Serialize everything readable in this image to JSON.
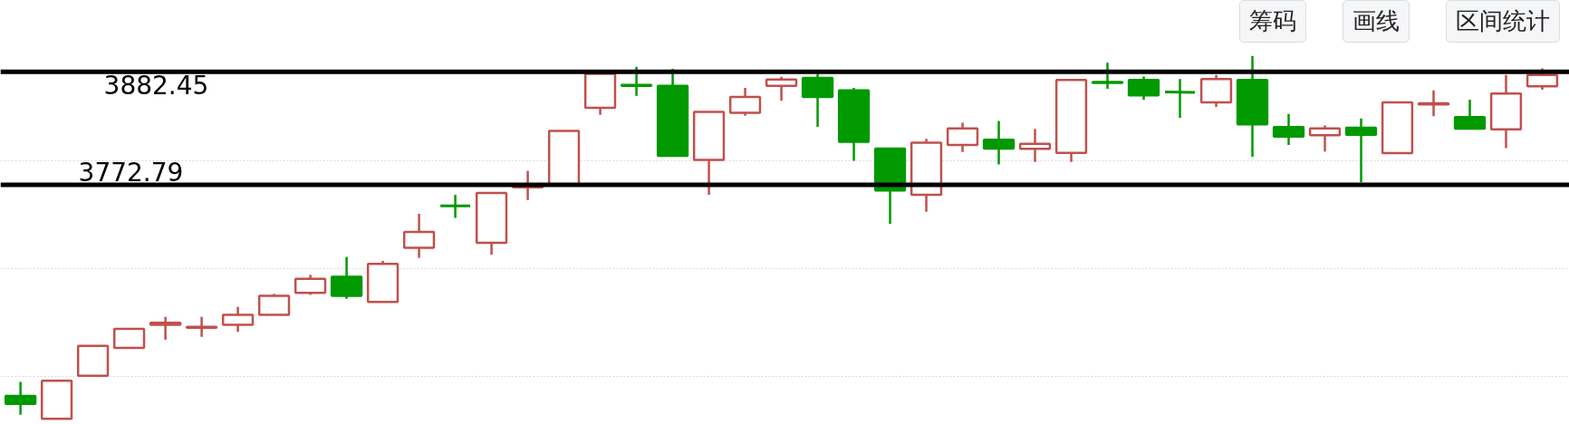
{
  "chart_data": {
    "type": "candlestick",
    "categories": [
      null,
      null,
      null,
      null,
      null,
      null,
      null,
      null,
      null,
      null,
      null,
      null,
      null,
      null,
      null,
      null,
      null,
      null,
      null,
      null,
      null,
      null,
      null,
      null,
      null,
      null,
      null,
      null,
      null,
      null,
      null,
      null,
      null,
      null,
      null,
      null,
      null,
      null,
      null,
      null,
      null,
      null,
      null
    ],
    "ohlc": [
      [
        3568.0,
        3581.6,
        3549.6,
        3560.3
      ],
      [
        3545.7,
        3582.6,
        3545.7,
        3582.6
      ],
      [
        3587.4,
        3616.5,
        3586.5,
        3616.5
      ],
      [
        3614.6,
        3633.0,
        3613.6,
        3633.0
      ],
      [
        3636.9,
        3644.7,
        3622.4,
        3638.9
      ],
      [
        3634.0,
        3644.7,
        3625.3,
        3635.0
      ],
      [
        3636.9,
        3654.4,
        3630.1,
        3646.6
      ],
      [
        3646.6,
        3667.0,
        3646.6,
        3665.1
      ],
      [
        3668.0,
        3685.4,
        3666.0,
        3681.6
      ],
      [
        3683.5,
        3702.9,
        3662.2,
        3665.1
      ],
      [
        3659.2,
        3699.0,
        3659.2,
        3696.1
      ],
      [
        3711.6,
        3744.6,
        3701.9,
        3727.2
      ],
      [
        3752.4,
        3763.1,
        3740.8,
        3752.4
      ],
      [
        3716.5,
        3765.0,
        3704.9,
        3765.0
      ],
      [
        3770.4,
        3786.4,
        3758.2,
        3771.3
      ],
      [
        3772.8,
        3825.2,
        3772.8,
        3825.2
      ],
      [
        3847.5,
        3882.5,
        3840.7,
        3880.5
      ],
      [
        3869.8,
        3887.3,
        3859.2,
        3868.9
      ],
      [
        3868.9,
        3885.4,
        3800.9,
        3800.9
      ],
      [
        3797.0,
        3843.6,
        3763.1,
        3843.6
      ],
      [
        3842.7,
        3866.9,
        3839.8,
        3858.2
      ],
      [
        3868.9,
        3877.6,
        3854.3,
        3875.1
      ],
      [
        3876.6,
        3880.5,
        3829.1,
        3858.2
      ],
      [
        3864.5,
        3866.9,
        3796.1,
        3814.5
      ],
      [
        3808.1,
        3808.7,
        3735.1,
        3767.4
      ],
      [
        3763.1,
        3817.4,
        3746.6,
        3813.6
      ],
      [
        3811.6,
        3833.0,
        3804.8,
        3827.6
      ],
      [
        3816.5,
        3834.9,
        3792.5,
        3808.1
      ],
      [
        3807.7,
        3827.1,
        3795.1,
        3812.6
      ],
      [
        3803.8,
        3874.7,
        3795.1,
        3874.7
      ],
      [
        3872.7,
        3891.2,
        3866.0,
        3871.8
      ],
      [
        3874.7,
        3878.0,
        3855.3,
        3859.6
      ],
      [
        3863.0,
        3875.4,
        3837.8,
        3862.6
      ],
      [
        3852.9,
        3879.5,
        3848.5,
        3875.4
      ],
      [
        3874.7,
        3898.0,
        3800.0,
        3831.5
      ],
      [
        3828.9,
        3841.7,
        3811.6,
        3819.6
      ],
      [
        3820.9,
        3830.5,
        3805.2,
        3827.6
      ],
      [
        3828.3,
        3837.2,
        3775.3,
        3821.3
      ],
      [
        3803.5,
        3853.3,
        3803.3,
        3852.9
      ],
      [
        3850.9,
        3864.5,
        3839.5,
        3851.9
      ],
      [
        3838.5,
        3855.5,
        3827.1,
        3827.3
      ],
      [
        3826.6,
        3879.5,
        3808.4,
        3861.3
      ],
      [
        3868.4,
        3885.9,
        3865.2,
        3879.5
      ]
    ],
    "colors": [
      "#009900",
      "#c0504d",
      "#c0504d",
      "#c0504d",
      "#c0504d",
      "#c0504d",
      "#c0504d",
      "#c0504d",
      "#c0504d",
      "#009900",
      "#c0504d",
      "#c0504d",
      "#009900",
      "#c0504d",
      "#c0504d",
      "#c0504d",
      "#c0504d",
      "#009900",
      "#009900",
      "#c0504d",
      "#c0504d",
      "#c0504d",
      "#009900",
      "#009900",
      "#009900",
      "#c0504d",
      "#c0504d",
      "#009900",
      "#c0504d",
      "#c0504d",
      "#009900",
      "#009900",
      "#009900",
      "#c0504d",
      "#009900",
      "#009900",
      "#c0504d",
      "#009900",
      "#c0504d",
      "#c0504d",
      "#009900",
      "#c0504d",
      "#c0504d"
    ],
    "ylim": [
      3542,
      3899
    ],
    "yticks": [
      {
        "value": 3796.1,
        "label": null
      },
      {
        "value": 3691.3,
        "label": null
      },
      {
        "value": 3586.5,
        "label": null
      }
    ],
    "grid": "y",
    "tick_labels": false,
    "ref_lines": [
      {
        "axis": "y",
        "value": 3882.45,
        "label": "3882.45",
        "color": "#000000"
      },
      {
        "axis": "y",
        "value": 3772.79,
        "label": "3772.79",
        "color": "#000000"
      }
    ],
    "annotations": [
      "筹码",
      "画线",
      "区间统计"
    ]
  }
}
